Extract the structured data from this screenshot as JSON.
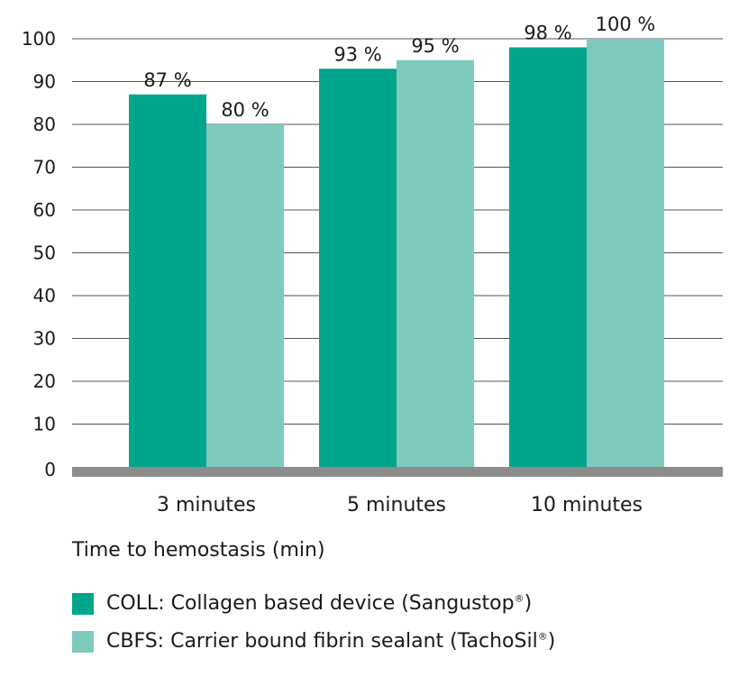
{
  "chart_data": {
    "type": "bar",
    "categories": [
      "3 minutes",
      "5 minutes",
      "10 minutes"
    ],
    "series": [
      {
        "name": "COLL: Collagen based device (Sangustop",
        "name_sup": "®",
        "name_end": ")",
        "color": "#00a68c",
        "values": [
          87,
          93,
          98
        ],
        "labels": [
          "87 %",
          "93 %",
          "98 %"
        ]
      },
      {
        "name": "CBFS: Carrier bound fibrin sealant (TachoSil",
        "name_sup": "®",
        "name_end": ")",
        "color": "#7fcabe",
        "values": [
          80,
          95,
          100
        ],
        "labels": [
          "80 %",
          "95 %",
          "100 %"
        ]
      }
    ],
    "yticks": [
      "0",
      "10",
      "20",
      "30",
      "40",
      "50",
      "60",
      "70",
      "80",
      "90",
      "100"
    ],
    "ylim": [
      0,
      100
    ],
    "xlabel": "Time to hemostasis (min)",
    "ylabel": "",
    "title": "",
    "grid": true,
    "legend_position": "bottom-left",
    "baseline_color": "#8c8c8c",
    "grid_color": "#555555"
  }
}
